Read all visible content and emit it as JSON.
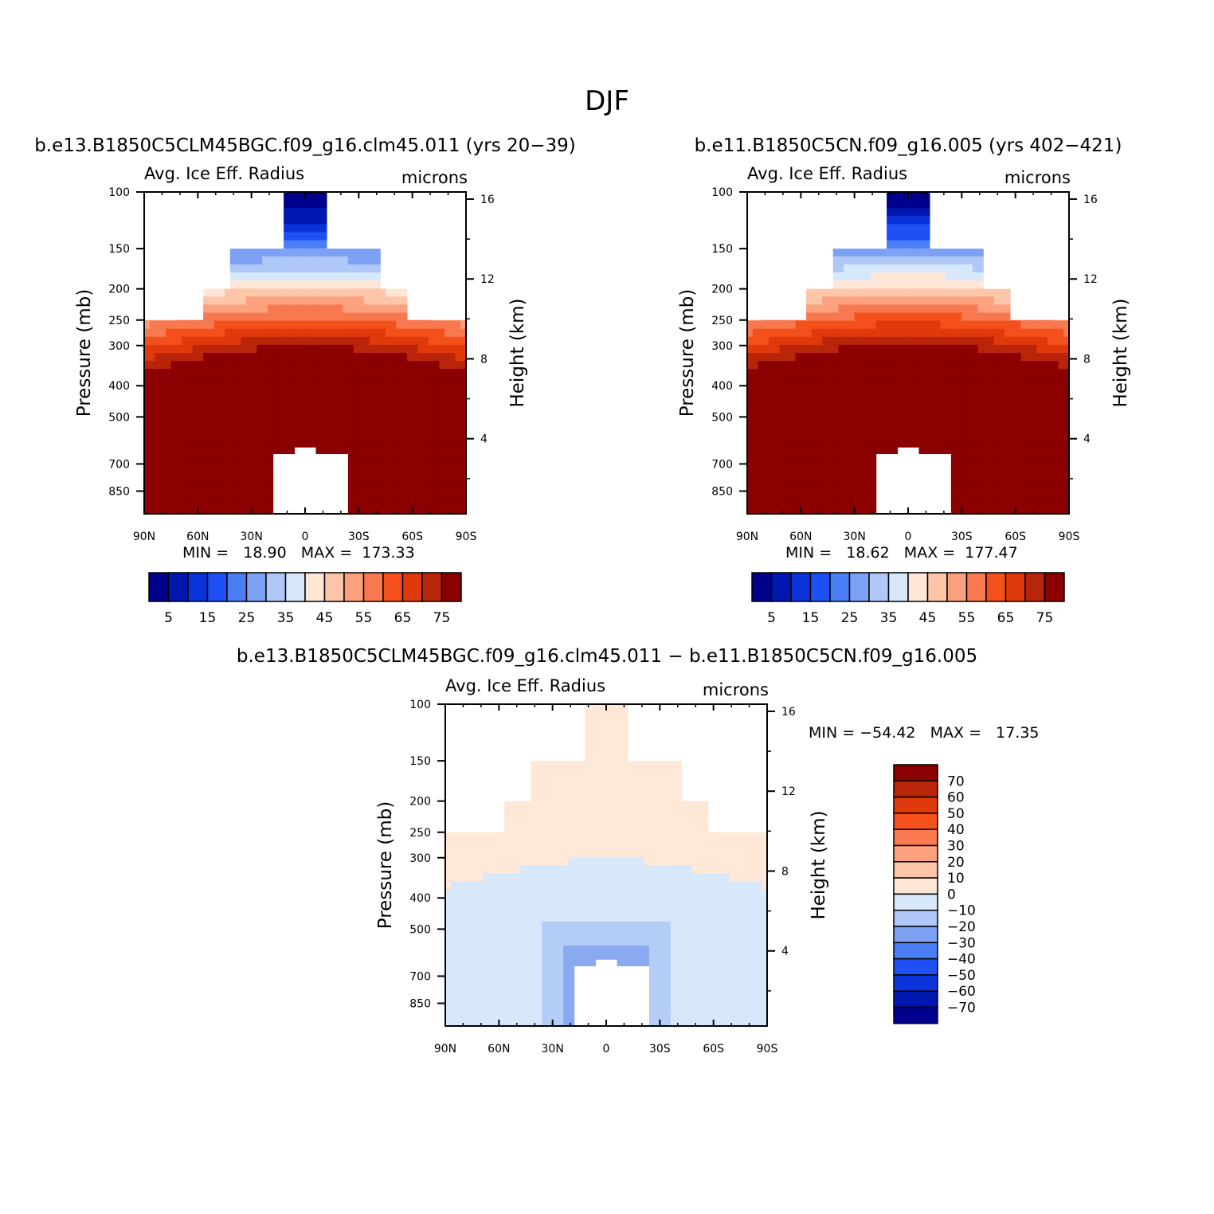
{
  "figure_title": "DJF",
  "colors": {
    "blues": [
      "#00008c",
      "#0018b0",
      "#0a33d9",
      "#1e50f5",
      "#4a7ef5",
      "#7da1f3",
      "#afc8f7",
      "#d7e8fb"
    ],
    "reds": [
      "#ffe6d6",
      "#fdc6a8",
      "#fca07e",
      "#f87850",
      "#f4501c",
      "#e03a0c",
      "#b82508",
      "#8b0000"
    ],
    "diff_neg": "#d8e8fb",
    "diff_neg2": "#b4cdf7",
    "diff_neg3": "#89aaf0",
    "diff_neg4": "#3a66e0",
    "diff_pos": "#ffe8d8"
  },
  "chart_data": [
    {
      "type": "heatmap",
      "title": "b.e13.B1850C5CLM45BGC.f09_g16.clm45.011 (yrs 20−39)",
      "left_label": "Avg. Ice Eff. Radius",
      "right_label": "microns",
      "ylabel": "Pressure (mb)",
      "y2label": "Height (km)",
      "x_ticks": [
        "90N",
        "60N",
        "30N",
        "0",
        "30S",
        "60S",
        "90S"
      ],
      "y_ticks": [
        "100",
        "150",
        "200",
        "250",
        "300",
        "400",
        "500",
        "700",
        "850"
      ],
      "y2_ticks": [
        "16",
        "12",
        "8",
        "4"
      ],
      "xlim": [
        90,
        -90
      ],
      "ylim": [
        100,
        1000
      ],
      "y_scale": "log",
      "stats": "MIN =   18.90   MAX =  173.33",
      "colorbar": {
        "levels": [
          "5",
          "15",
          "25",
          "35",
          "45",
          "55",
          "65",
          "75"
        ],
        "bounds": [
          5,
          10,
          15,
          20,
          25,
          30,
          35,
          40,
          45,
          50,
          55,
          60,
          65,
          70,
          75
        ]
      }
    },
    {
      "type": "heatmap",
      "title": "b.e11.B1850C5CN.f09_g16.005 (yrs 402−421)",
      "left_label": "Avg. Ice Eff. Radius",
      "right_label": "microns",
      "ylabel": "Pressure (mb)",
      "y2label": "Height (km)",
      "x_ticks": [
        "90N",
        "60N",
        "30N",
        "0",
        "30S",
        "60S",
        "90S"
      ],
      "y_ticks": [
        "100",
        "150",
        "200",
        "250",
        "300",
        "400",
        "500",
        "700",
        "850"
      ],
      "y2_ticks": [
        "16",
        "12",
        "8",
        "4"
      ],
      "xlim": [
        90,
        -90
      ],
      "ylim": [
        100,
        1000
      ],
      "y_scale": "log",
      "stats": "MIN =   18.62   MAX =  177.47",
      "colorbar": {
        "levels": [
          "5",
          "15",
          "25",
          "35",
          "45",
          "55",
          "65",
          "75"
        ],
        "bounds": [
          5,
          10,
          15,
          20,
          25,
          30,
          35,
          40,
          45,
          50,
          55,
          60,
          65,
          70,
          75
        ]
      }
    },
    {
      "type": "heatmap",
      "title": "b.e13.B1850C5CLM45BGC.f09_g16.clm45.011 − b.e11.B1850C5CN.f09_g16.005",
      "left_label": "Avg. Ice Eff. Radius",
      "right_label": "microns",
      "ylabel": "Pressure (mb)",
      "y2label": "Height (km)",
      "x_ticks": [
        "90N",
        "60N",
        "30N",
        "0",
        "30S",
        "60S",
        "90S"
      ],
      "y_ticks": [
        "100",
        "150",
        "200",
        "250",
        "300",
        "400",
        "500",
        "700",
        "850"
      ],
      "y2_ticks": [
        "16",
        "12",
        "8",
        "4"
      ],
      "xlim": [
        90,
        -90
      ],
      "ylim": [
        100,
        1000
      ],
      "y_scale": "log",
      "stats": "MIN = −54.42   MAX =   17.35",
      "colorbar": {
        "levels": [
          "70",
          "60",
          "50",
          "40",
          "30",
          "20",
          "10",
          "0",
          "−10",
          "−20",
          "−30",
          "−40",
          "−50",
          "−60",
          "−70"
        ],
        "bounds": [
          70,
          60,
          50,
          40,
          30,
          20,
          10,
          0,
          -10,
          -20,
          -30,
          -40,
          -50,
          -60,
          -70
        ]
      }
    }
  ]
}
